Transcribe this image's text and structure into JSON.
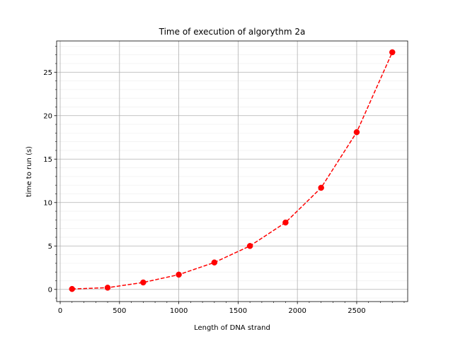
{
  "chart_data": {
    "type": "line",
    "title": "Time of execution of algorythm 2a",
    "xlabel": "Length of DNA strand",
    "ylabel": "time to run (s)",
    "xlim": [
      -30,
      2930
    ],
    "ylim": [
      -1.4,
      28.6
    ],
    "xticks": [
      0,
      500,
      1000,
      1500,
      2000,
      2500
    ],
    "xtick_labels": [
      "0",
      "500",
      "1000",
      "1500",
      "2000",
      "2500"
    ],
    "yticks": [
      0,
      5,
      10,
      15,
      20,
      25
    ],
    "ytick_labels": [
      "0",
      "5",
      "10",
      "15",
      "20",
      "25"
    ],
    "grid": true,
    "minor_grid": true,
    "series": [
      {
        "name": "algorythm 2a",
        "color": "#ff0000",
        "linestyle": "dashed",
        "marker": "circle",
        "x": [
          100,
          400,
          700,
          1000,
          1300,
          1600,
          1900,
          2200,
          2500,
          2800
        ],
        "y": [
          0.05,
          0.2,
          0.8,
          1.7,
          3.1,
          5.0,
          7.7,
          11.7,
          18.1,
          27.3
        ]
      }
    ]
  }
}
